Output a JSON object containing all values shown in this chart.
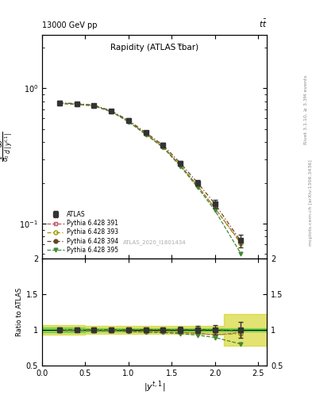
{
  "title_left": "13000 GeV pp",
  "title_right": "tt",
  "panel_title": "Rapidity (ATLAS t̅bar)",
  "watermark": "ATLAS_2020_I1801434",
  "xlabel": "|y^{t,1}|",
  "right_label_top": "Rivet 3.1.10, ≥ 3.3M events",
  "right_label_bot": "mcplots.cern.ch [arXiv:1306.3436]",
  "x_data": [
    0.2,
    0.4,
    0.6,
    0.8,
    1.0,
    1.2,
    1.4,
    1.6,
    1.8,
    2.0,
    2.3
  ],
  "atlas_y": [
    0.78,
    0.77,
    0.75,
    0.68,
    0.58,
    0.47,
    0.38,
    0.28,
    0.2,
    0.14,
    0.075
  ],
  "atlas_yerr": [
    0.025,
    0.022,
    0.022,
    0.02,
    0.018,
    0.016,
    0.014,
    0.012,
    0.01,
    0.009,
    0.008
  ],
  "py391_y": [
    0.77,
    0.76,
    0.74,
    0.67,
    0.57,
    0.46,
    0.37,
    0.27,
    0.19,
    0.13,
    0.072
  ],
  "py393_y": [
    0.78,
    0.77,
    0.75,
    0.68,
    0.57,
    0.46,
    0.37,
    0.27,
    0.19,
    0.13,
    0.071
  ],
  "py394_y": [
    0.78,
    0.77,
    0.75,
    0.68,
    0.58,
    0.47,
    0.38,
    0.28,
    0.2,
    0.14,
    0.074
  ],
  "py395_y": [
    0.775,
    0.765,
    0.745,
    0.675,
    0.565,
    0.455,
    0.365,
    0.265,
    0.185,
    0.125,
    0.06
  ],
  "atlas_color": "#333333",
  "py391_color": "#bb5566",
  "py393_color": "#999900",
  "py394_color": "#664422",
  "py395_color": "#448833",
  "ylim_main": [
    0.055,
    2.5
  ],
  "ylim_ratio": [
    0.5,
    2.0
  ],
  "xlim": [
    0.0,
    2.6
  ],
  "band_x_edges": [
    0.0,
    0.3,
    0.5,
    0.7,
    0.9,
    1.1,
    1.3,
    1.5,
    1.7,
    1.9,
    2.1,
    2.6
  ],
  "band_inner_lo": [
    0.965,
    0.965,
    0.975,
    0.975,
    0.975,
    0.975,
    0.975,
    0.975,
    0.975,
    0.975,
    0.975
  ],
  "band_inner_hi": [
    1.035,
    1.035,
    1.025,
    1.025,
    1.025,
    1.025,
    1.025,
    1.025,
    1.025,
    1.025,
    1.025
  ],
  "band_outer_lo": [
    0.935,
    0.935,
    0.945,
    0.945,
    0.945,
    0.945,
    0.945,
    0.945,
    0.945,
    0.945,
    0.78
  ],
  "band_outer_hi": [
    1.065,
    1.065,
    1.055,
    1.055,
    1.055,
    1.055,
    1.055,
    1.055,
    1.055,
    1.055,
    1.22
  ],
  "inner_color": "#33cc33",
  "outer_color": "#cccc00",
  "inner_alpha": 0.55,
  "outer_alpha": 0.55
}
